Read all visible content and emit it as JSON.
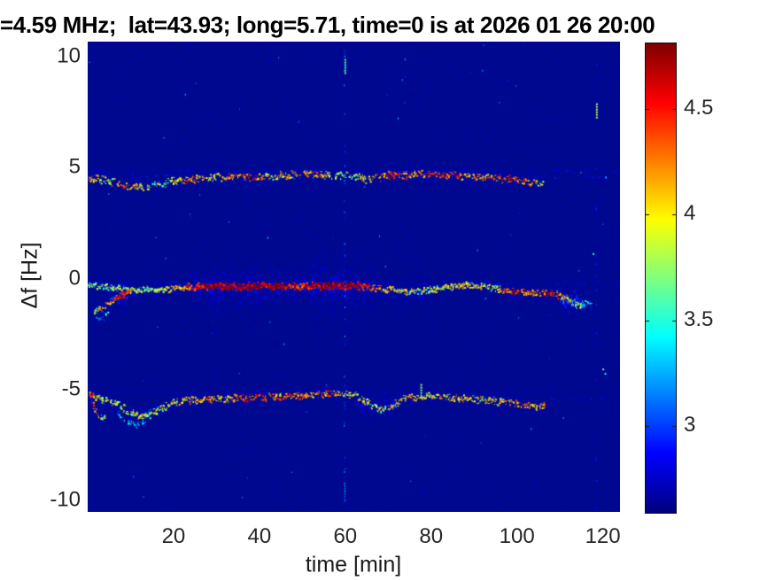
{
  "chart_data": {
    "type": "heatmap",
    "title": "=4.59 MHz;  lat=43.93; long=5.71, time=0 is at 2026 01 26 20:00",
    "xlabel": "time [min]",
    "ylabel": "Δf [Hz]",
    "xlim": [
      0,
      124
    ],
    "ylim": [
      -10.51,
      10.68
    ],
    "xticks": [
      20,
      40,
      60,
      80,
      100,
      120
    ],
    "yticks": [
      10,
      5,
      0,
      -5,
      -10
    ],
    "grid": false,
    "colormap": "jet",
    "background_color": "#000890",
    "colorbar": {
      "ticks": [
        4.5,
        4,
        3.5,
        3
      ],
      "range": [
        2.59,
        4.81
      ],
      "position": "right"
    },
    "seed": 1337,
    "traces": [
      {
        "name": "upper-doppler-trace",
        "df_nominal": 4.5,
        "points": [
          [
            0.3,
            4.45
          ],
          [
            1.5,
            4.55
          ],
          [
            4,
            4.45
          ],
          [
            7,
            4.3
          ],
          [
            10,
            4.15
          ],
          [
            13,
            4.15
          ],
          [
            16,
            4.28
          ],
          [
            20,
            4.42
          ],
          [
            24,
            4.52
          ],
          [
            29,
            4.58
          ],
          [
            35,
            4.62
          ],
          [
            41,
            4.62
          ],
          [
            47,
            4.72
          ],
          [
            53,
            4.72
          ],
          [
            57,
            4.7
          ],
          [
            60,
            4.68
          ],
          [
            63,
            4.6
          ],
          [
            65,
            4.5
          ],
          [
            67,
            4.58
          ],
          [
            70,
            4.68
          ],
          [
            74,
            4.7
          ],
          [
            78,
            4.73
          ],
          [
            84,
            4.69
          ],
          [
            90,
            4.63
          ],
          [
            95,
            4.57
          ],
          [
            99,
            4.5
          ],
          [
            102,
            4.42
          ],
          [
            106,
            4.32
          ]
        ],
        "intensity": [
          [
            0,
            0.78
          ],
          [
            3,
            0.55
          ],
          [
            6,
            0.6
          ],
          [
            9,
            0.78
          ],
          [
            12,
            0.62
          ],
          [
            16,
            0.5
          ],
          [
            20,
            0.62
          ],
          [
            24,
            0.78
          ],
          [
            28,
            0.62
          ],
          [
            33,
            0.72
          ],
          [
            38,
            0.8
          ],
          [
            43,
            0.62
          ],
          [
            48,
            0.68
          ],
          [
            53,
            0.72
          ],
          [
            58,
            0.56
          ],
          [
            62,
            0.5
          ],
          [
            66,
            0.68
          ],
          [
            71,
            0.85
          ],
          [
            76,
            0.72
          ],
          [
            81,
            0.85
          ],
          [
            86,
            0.78
          ],
          [
            91,
            0.68
          ],
          [
            95,
            0.74
          ],
          [
            99,
            0.8
          ],
          [
            102,
            0.74
          ],
          [
            106,
            0.6
          ]
        ],
        "density": 0.8,
        "jitter_hz": 0.14
      },
      {
        "name": "middle-doppler-trace",
        "df_nominal": -0.4,
        "points": [
          [
            0,
            -0.28
          ],
          [
            5,
            -0.35
          ],
          [
            9,
            -0.5
          ],
          [
            12,
            -0.48
          ],
          [
            16,
            -0.44
          ],
          [
            20,
            -0.4
          ],
          [
            24,
            -0.36
          ],
          [
            28,
            -0.32
          ],
          [
            35,
            -0.3
          ],
          [
            42,
            -0.3
          ],
          [
            49,
            -0.31
          ],
          [
            56,
            -0.3
          ],
          [
            62,
            -0.3
          ],
          [
            66,
            -0.36
          ],
          [
            70,
            -0.48
          ],
          [
            74,
            -0.58
          ],
          [
            77,
            -0.55
          ],
          [
            81,
            -0.42
          ],
          [
            85,
            -0.33
          ],
          [
            89,
            -0.28
          ],
          [
            93,
            -0.33
          ],
          [
            96,
            -0.45
          ],
          [
            99,
            -0.58
          ],
          [
            103,
            -0.62
          ],
          [
            106,
            -0.6
          ],
          [
            109,
            -0.68
          ],
          [
            111,
            -0.85
          ],
          [
            113,
            -1.05
          ],
          [
            114.5,
            -1.2
          ],
          [
            117,
            -1.05
          ]
        ],
        "intensity": [
          [
            0,
            0.5
          ],
          [
            4,
            0.55
          ],
          [
            8,
            0.6
          ],
          [
            12,
            0.52
          ],
          [
            16,
            0.55
          ],
          [
            20,
            0.65
          ],
          [
            23,
            0.78
          ],
          [
            26,
            0.92
          ],
          [
            29,
            1.0
          ],
          [
            33,
            0.97
          ],
          [
            37,
            1.0
          ],
          [
            41,
            0.95
          ],
          [
            44,
            1.0
          ],
          [
            47,
            0.9
          ],
          [
            50,
            0.85
          ],
          [
            53,
            0.97
          ],
          [
            56,
            1.0
          ],
          [
            59,
            0.95
          ],
          [
            62,
            1.0
          ],
          [
            64,
            0.9
          ],
          [
            67,
            0.72
          ],
          [
            71,
            0.6
          ],
          [
            75,
            0.55
          ],
          [
            79,
            0.55
          ],
          [
            83,
            0.62
          ],
          [
            87,
            0.66
          ],
          [
            91,
            0.6
          ],
          [
            94,
            0.55
          ],
          [
            97,
            0.75
          ],
          [
            100,
            0.85
          ],
          [
            103,
            0.72
          ],
          [
            106,
            0.82
          ],
          [
            108,
            0.85
          ],
          [
            110,
            0.7
          ],
          [
            112,
            0.6
          ],
          [
            114,
            0.5
          ],
          [
            117,
            0.3
          ]
        ],
        "density": 1.0,
        "jitter_hz": 0.12
      },
      {
        "name": "middle-trace-left-fork",
        "df_nominal": -1.0,
        "points": [
          [
            1.5,
            -1.45
          ],
          [
            3,
            -1.3
          ],
          [
            5,
            -1.05
          ],
          [
            6.5,
            -0.85
          ],
          [
            8,
            -0.7
          ],
          [
            9.5,
            -0.6
          ]
        ],
        "intensity": [
          [
            1.5,
            0.55
          ],
          [
            4,
            0.65
          ],
          [
            6,
            0.8
          ],
          [
            7.5,
            0.95
          ],
          [
            9.5,
            0.85
          ]
        ],
        "density": 0.9,
        "jitter_hz": 0.12
      },
      {
        "name": "middle-fork-stray",
        "df_nominal": -1.6,
        "points": [
          [
            2,
            -1.8
          ],
          [
            3.5,
            -1.65
          ],
          [
            5,
            -1.5
          ]
        ],
        "intensity": [
          [
            2,
            0.35
          ],
          [
            5,
            0.3
          ]
        ],
        "density": 0.5,
        "jitter_hz": 0.15
      },
      {
        "name": "lower-doppler-trace",
        "df_nominal": -5.4,
        "points": [
          [
            0.3,
            -5.05
          ],
          [
            1.2,
            -5.3
          ],
          [
            3,
            -5.4
          ],
          [
            5,
            -5.5
          ],
          [
            7,
            -5.65
          ],
          [
            9,
            -5.9
          ],
          [
            11,
            -6.1
          ],
          [
            12.5,
            -6.2
          ],
          [
            14,
            -6.1
          ],
          [
            16,
            -5.92
          ],
          [
            18,
            -5.72
          ],
          [
            20,
            -5.55
          ],
          [
            23,
            -5.45
          ],
          [
            27,
            -5.4
          ],
          [
            32,
            -5.37
          ],
          [
            38,
            -5.33
          ],
          [
            44,
            -5.3
          ],
          [
            50,
            -5.27
          ],
          [
            55,
            -5.2
          ],
          [
            58,
            -5.15
          ],
          [
            61,
            -5.2
          ],
          [
            63,
            -5.32
          ],
          [
            65,
            -5.55
          ],
          [
            67,
            -5.78
          ],
          [
            69,
            -5.85
          ],
          [
            71,
            -5.65
          ],
          [
            73,
            -5.45
          ],
          [
            76,
            -5.3
          ],
          [
            79,
            -5.24
          ],
          [
            83,
            -5.3
          ],
          [
            87,
            -5.38
          ],
          [
            91,
            -5.45
          ],
          [
            95,
            -5.5
          ],
          [
            98,
            -5.56
          ],
          [
            101,
            -5.65
          ],
          [
            104,
            -5.7
          ],
          [
            106.5,
            -5.75
          ]
        ],
        "intensity": [
          [
            0,
            0.8
          ],
          [
            2,
            0.68
          ],
          [
            5,
            0.52
          ],
          [
            8,
            0.56
          ],
          [
            11,
            0.6
          ],
          [
            14,
            0.5
          ],
          [
            17,
            0.56
          ],
          [
            20,
            0.62
          ],
          [
            24,
            0.7
          ],
          [
            28,
            0.75
          ],
          [
            33,
            0.68
          ],
          [
            37,
            0.78
          ],
          [
            42,
            0.74
          ],
          [
            47,
            0.8
          ],
          [
            52,
            0.7
          ],
          [
            56,
            0.76
          ],
          [
            60,
            0.6
          ],
          [
            63,
            0.64
          ],
          [
            66,
            0.58
          ],
          [
            69,
            0.55
          ],
          [
            72,
            0.64
          ],
          [
            75,
            0.7
          ],
          [
            78,
            0.66
          ],
          [
            82,
            0.6
          ],
          [
            86,
            0.68
          ],
          [
            90,
            0.62
          ],
          [
            94,
            0.6
          ],
          [
            97,
            0.66
          ],
          [
            100,
            0.76
          ],
          [
            102,
            0.8
          ],
          [
            106.5,
            0.68
          ]
        ],
        "density": 0.85,
        "jitter_hz": 0.13
      },
      {
        "name": "lower-trace-left-loop",
        "df_nominal": -5.8,
        "points": [
          [
            0.4,
            -5.1
          ],
          [
            1,
            -5.6
          ],
          [
            1.8,
            -6.0
          ],
          [
            2.8,
            -6.25
          ],
          [
            4,
            -6.15
          ]
        ],
        "intensity": [
          [
            0.4,
            0.8
          ],
          [
            2,
            0.7
          ],
          [
            4,
            0.5
          ]
        ],
        "density": 0.9,
        "jitter_hz": 0.1
      },
      {
        "name": "lower-dip-underside",
        "df_nominal": -6.4,
        "points": [
          [
            7,
            -6.1
          ],
          [
            9,
            -6.45
          ],
          [
            11,
            -6.55
          ],
          [
            13,
            -6.45
          ]
        ],
        "intensity": [
          [
            7,
            0.3
          ],
          [
            13,
            0.28
          ]
        ],
        "density": 0.5,
        "jitter_hz": 0.12
      }
    ],
    "faint_rows": [
      {
        "df": 4.85,
        "t0": 0,
        "t1": 124,
        "level": 0.1,
        "density": 0.3
      },
      {
        "df": 4.62,
        "t0": 0,
        "t1": 20,
        "level": 0.14,
        "density": 0.3
      },
      {
        "df": 4.6,
        "t0": 104,
        "t1": 124,
        "level": 0.12,
        "density": 0.22
      },
      {
        "df": -0.18,
        "t0": 0,
        "t1": 124,
        "level": 0.1,
        "density": 0.32
      },
      {
        "df": -5.1,
        "t0": 0,
        "t1": 112,
        "level": 0.09,
        "density": 0.25
      },
      {
        "df": -5.4,
        "t0": 104,
        "t1": 122,
        "level": 0.12,
        "density": 0.12
      }
    ],
    "smears": [
      {
        "t0": 24,
        "t1": 67,
        "df": -0.35,
        "spread": 1.1,
        "level": 0.13,
        "count": 800
      },
      {
        "t0": 52,
        "t1": 64,
        "df": -0.3,
        "spread": 2.4,
        "level": 0.12,
        "count": 260
      },
      {
        "t0": 28,
        "t1": 40,
        "df": -0.35,
        "spread": 1.8,
        "level": 0.1,
        "count": 200
      },
      {
        "t0": 69,
        "t1": 80,
        "df": -0.55,
        "spread": 0.8,
        "level": 0.1,
        "count": 150
      },
      {
        "t0": 110,
        "t1": 115,
        "df": -1.0,
        "spread": 0.7,
        "level": 0.18,
        "count": 120
      },
      {
        "t0": 5,
        "t1": 9,
        "df": -0.8,
        "spread": 0.9,
        "level": 0.15,
        "count": 90
      },
      {
        "t0": 70,
        "t1": 90,
        "df": 4.7,
        "spread": 0.5,
        "level": 0.1,
        "count": 120
      },
      {
        "t0": 62,
        "t1": 72,
        "df": -5.7,
        "spread": 0.7,
        "level": 0.12,
        "count": 110
      }
    ],
    "vertical_artifacts": [
      {
        "t": 59.8,
        "density": 0.38,
        "level_min": 0.08,
        "level_max": 0.32
      },
      {
        "t": 118.4,
        "density": 0.2,
        "level_min": 0.06,
        "level_max": 0.18
      }
    ],
    "bright_marks": [
      {
        "t": 118.4,
        "df0": 7.9,
        "df1": 7.25,
        "level": 0.55,
        "w": 2
      },
      {
        "t": 77.5,
        "df0": -4.75,
        "df1": -5.25,
        "level": 0.5,
        "w": 2
      },
      {
        "t": 59.8,
        "df0": 9.9,
        "df1": 9.2,
        "level": 0.45,
        "w": 2
      },
      {
        "t": 59.8,
        "df0": -9.3,
        "df1": -9.9,
        "level": 0.3,
        "w": 1
      }
    ],
    "dots": [
      {
        "t": 119.9,
        "df": -4.05,
        "level": 0.5
      },
      {
        "t": 120.4,
        "df": -4.25,
        "level": 0.4
      },
      {
        "t": 117.6,
        "df": 1.15,
        "level": 0.45
      },
      {
        "t": 120.5,
        "df": 4.6,
        "level": 0.3
      }
    ],
    "noise": {
      "count": 2600,
      "level_max": 0.12,
      "bright_count": 80,
      "bright_level": 0.34
    }
  }
}
